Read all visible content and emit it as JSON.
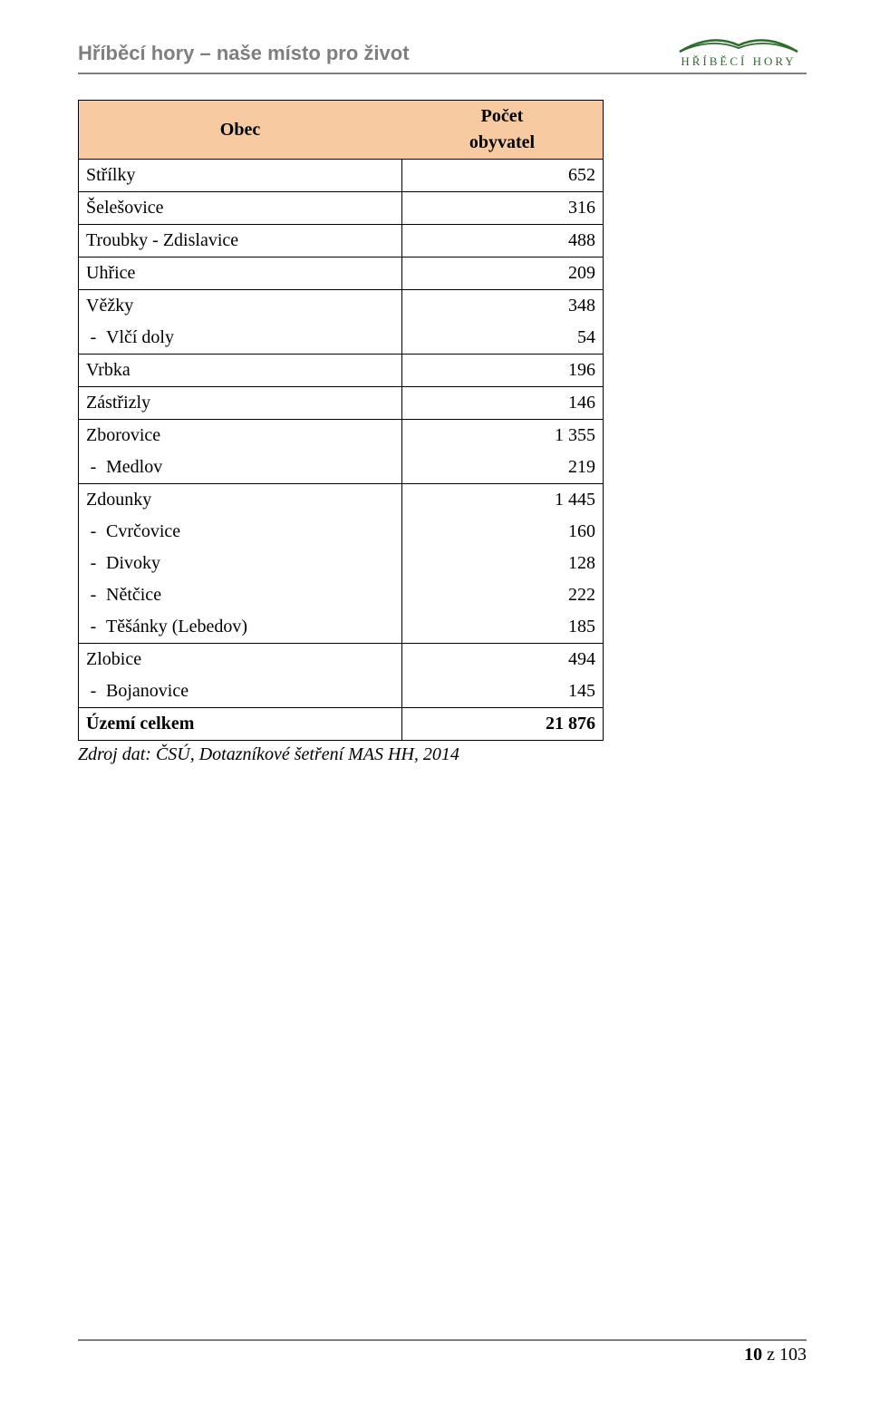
{
  "header": {
    "title": "Hříběcí hory – naše místo pro život",
    "logo_text": "HŘÍBĚCÍ HORY",
    "logo_color": "#2e6b2f"
  },
  "table": {
    "header_bg": "#f7caa2",
    "col_name": "Obec",
    "col_value_l1": "Počet",
    "col_value_l2": "obyvatel",
    "rows": [
      {
        "type": "single",
        "name": "Střílky",
        "value": "652"
      },
      {
        "type": "single",
        "name": "Šelešovice",
        "value": "316"
      },
      {
        "type": "single",
        "name": "Troubky - Zdislavice",
        "value": "488"
      },
      {
        "type": "single",
        "name": "Uhřice",
        "value": "209"
      },
      {
        "type": "group",
        "name": "Věžky",
        "value": "348",
        "subs": [
          {
            "name": "Vlčí doly",
            "value": "54"
          }
        ]
      },
      {
        "type": "single",
        "name": "Vrbka",
        "value": "196"
      },
      {
        "type": "single",
        "name": "Zástřizly",
        "value": "146"
      },
      {
        "type": "group",
        "name": "Zborovice",
        "value": "1 355",
        "subs": [
          {
            "name": "Medlov",
            "value": "219"
          }
        ]
      },
      {
        "type": "group",
        "name": "Zdounky",
        "value": "1 445",
        "subs": [
          {
            "name": "Cvrčovice",
            "value": "160"
          },
          {
            "name": "Divoky",
            "value": "128"
          },
          {
            "name": "Nětčice",
            "value": "222"
          },
          {
            "name": "Těšánky (Lebedov)",
            "value": "185"
          }
        ]
      },
      {
        "type": "group",
        "name": "Zlobice",
        "value": "494",
        "subs": [
          {
            "name": "Bojanovice",
            "value": "145"
          }
        ]
      },
      {
        "type": "total",
        "name": "Území celkem",
        "value": "21 876"
      }
    ]
  },
  "source": "Zdroj dat: ČSÚ, Dotazníkové šetření MAS HH, 2014",
  "footer": {
    "page": "10",
    "of_sep": " z ",
    "total": "103"
  }
}
